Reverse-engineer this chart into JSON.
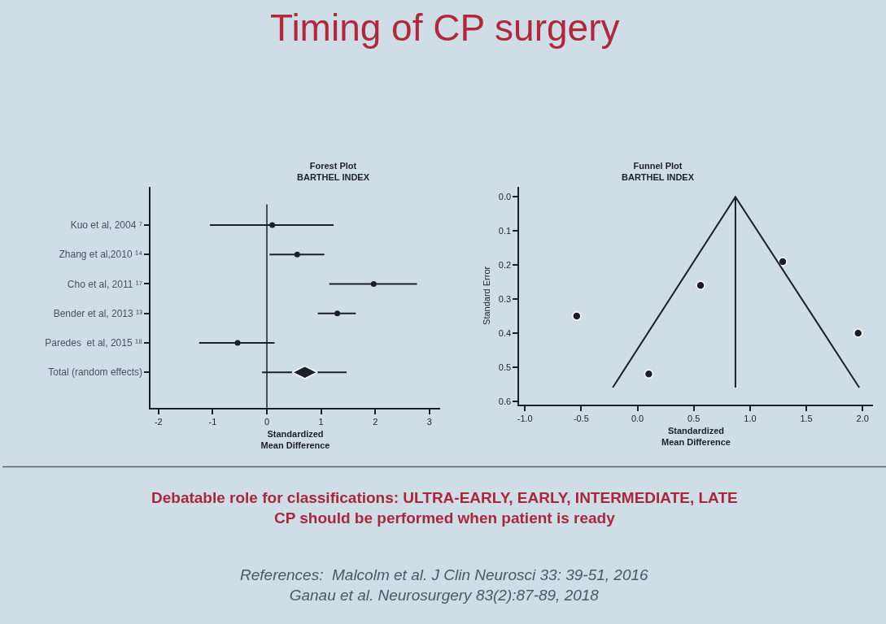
{
  "chart_data": [
    {
      "type": "other",
      "title": "Timing of CP surgery",
      "annotations": [
        "Debatable role for classifications: ULTRA-EARLY, EARLY, INTERMEDIATE, LATE\nCP should be performed when patient is ready",
        "References:  Malcolm et al. J Clin Neurosci 33: 39-51, 2016\nGanau et al. Neurosurgery 83(2):87-89, 2018"
      ]
    },
    {
      "type": "scatter",
      "title": "Forest Plot\nBARTHEL INDEX",
      "xlabel": "Standardized\nMean Difference",
      "orientation": "horizontal",
      "categories": [
        "Kuo et al, 2004 ⁷",
        "Zhang et al,2010 ¹⁴",
        "Cho et al, 2011 ¹⁷",
        "Bender et al, 2013 ¹³",
        "Paredes  et al, 2015 ¹⁸",
        "Total (random effects)"
      ],
      "series": [
        {
          "color": "#1a1f2b",
          "marker": "circle",
          "values": [
            0.1,
            0.56,
            1.97,
            1.3,
            -0.54,
            null
          ],
          "errors": [
            [
              -1.05,
              1.23
            ],
            [
              0.05,
              1.06
            ],
            [
              1.15,
              2.77
            ],
            [
              0.94,
              1.64
            ],
            [
              -1.25,
              0.14
            ],
            null
          ]
        },
        {
          "color": "#1a1f2b",
          "marker": "diamond",
          "values": [
            null,
            null,
            null,
            null,
            null,
            0.7
          ],
          "errors": [
            null,
            null,
            null,
            null,
            null,
            [
              -0.09,
              1.47
            ]
          ]
        }
      ],
      "ref_lines": [
        {
          "axis": "x",
          "value": 0,
          "color": "#1a1f2b"
        }
      ],
      "xlim": [
        -2.14,
        3.19
      ],
      "xticks": [
        -2,
        -1,
        0,
        1,
        2,
        3
      ],
      "grid": false,
      "legend": false
    },
    {
      "type": "scatter",
      "title": "Funnel Plot\nBARTHEL INDEX",
      "xlabel": "Standardized\nMean Difference",
      "ylabel": "Standard Error",
      "series": [
        {
          "color": "#1a1f2b",
          "marker": "circle",
          "x": [
            -0.54,
            0.1,
            0.56,
            1.29,
            1.96
          ],
          "values": [
            0.35,
            0.52,
            0.26,
            0.19,
            0.4
          ]
        },
        {
          "type": "line",
          "color": "#1a1f2b",
          "marker": "none",
          "x": [
            -0.22,
            0.87,
            1.97
          ],
          "values": [
            0.56,
            0.0,
            0.56
          ]
        },
        {
          "type": "line",
          "color": "#1a1f2b",
          "marker": "none",
          "x": [
            0.87,
            0.87
          ],
          "values": [
            0.0,
            0.56
          ]
        }
      ],
      "xlim": [
        -1.05,
        2.09
      ],
      "xticks": [
        {
          "value": -1,
          "label": "-1.0"
        },
        {
          "value": -0.5,
          "label": "-0.5"
        },
        {
          "value": 0,
          "label": "0.0"
        },
        {
          "value": 0.5,
          "label": "0.5"
        },
        {
          "value": 1,
          "label": "1.0"
        },
        {
          "value": 1.5,
          "label": "1.5"
        },
        {
          "value": 2,
          "label": "2.0"
        }
      ],
      "ylim": [
        0.61,
        -0.03
      ],
      "yticks": [
        {
          "value": 0,
          "label": "0.0"
        },
        {
          "value": 0.1,
          "label": "0.1"
        },
        {
          "value": 0.2,
          "label": "0.2"
        },
        {
          "value": 0.3,
          "label": "0.3"
        },
        {
          "value": 0.4,
          "label": "0.4"
        },
        {
          "value": 0.5,
          "label": "0.5"
        },
        {
          "value": 0.6,
          "label": "0.6"
        }
      ],
      "grid": false,
      "legend": false
    }
  ]
}
